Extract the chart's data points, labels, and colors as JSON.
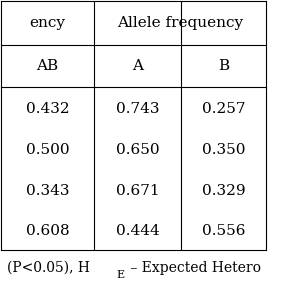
{
  "header_row1": [
    "",
    "ency",
    "",
    "Allele frequency",
    "",
    ""
  ],
  "header_row2": [
    "",
    "AB",
    "",
    "A",
    "",
    "B"
  ],
  "rows": [
    [
      "",
      "0.432",
      "",
      "0.743",
      "",
      "0.257"
    ],
    [
      "",
      "0.500",
      "",
      "0.650",
      "",
      "0.350"
    ],
    [
      "",
      "0.343",
      "",
      "0.671",
      "",
      "0.329"
    ],
    [
      "",
      "0.608",
      "",
      "0.444",
      "",
      "0.556"
    ]
  ],
  "footer": "(P<0.05), H",
  "footer2": "E",
  "footer3": " – Expected Hetero",
  "col_headers": [
    "AB",
    "A",
    "B"
  ],
  "col_header_span": "Allele frequency",
  "ab_values": [
    "0.432",
    "0.500",
    "0.343",
    "0.608"
  ],
  "a_values": [
    "0.743",
    "0.650",
    "0.671",
    "0.444"
  ],
  "b_values": [
    "0.257",
    "0.350",
    "0.329",
    "0.556"
  ],
  "background_color": "#ffffff",
  "text_color": "#000000",
  "line_color": "#000000",
  "font_size": 11,
  "header_font_size": 11,
  "footer_font_size": 10
}
